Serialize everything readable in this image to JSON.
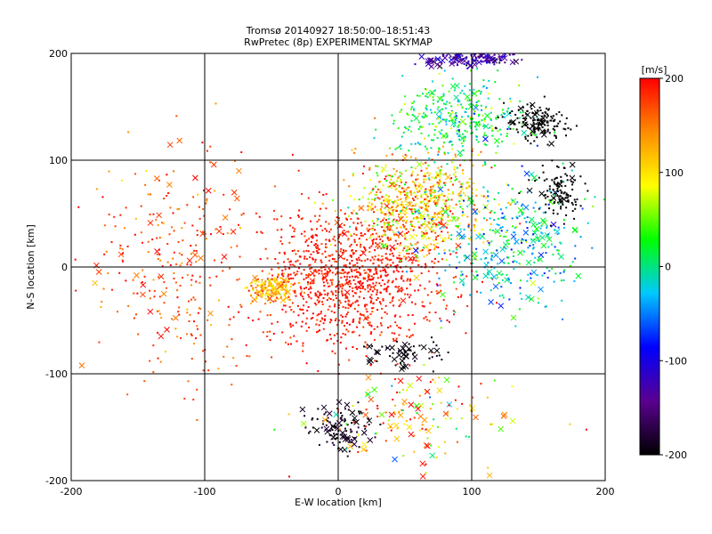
{
  "chart_data": {
    "type": "scatter",
    "title": "Tromsø 20140927 18:50:00–18:51:43",
    "subtitle": "RwPretec (8p) EXPERIMENTAL SKYMAP",
    "xlabel": "E-W location [km]",
    "ylabel": "N-S location [km]",
    "xlim": [
      -200,
      200
    ],
    "ylim": [
      -200,
      200
    ],
    "x_ticks": [
      "-200",
      "-100",
      "0",
      "100",
      "200"
    ],
    "y_ticks": [
      "-200",
      "-100",
      "0",
      "100",
      "200"
    ],
    "grid": true,
    "marker_types": [
      "dot",
      "x"
    ],
    "colorbar": {
      "label": "[m/s]",
      "min": -200,
      "max": 200,
      "ticks": [
        "-200",
        "-100",
        "0",
        "100",
        "200"
      ],
      "colormap": [
        "#000000",
        "#5a0090",
        "#0000ff",
        "#00c8ff",
        "#00ff00",
        "#ffff00",
        "#ff8c00",
        "#ff0000"
      ]
    },
    "clusters": [
      {
        "center": [
          10,
          -10
        ],
        "spread": [
          60,
          55
        ],
        "count": 1100,
        "velocity": 190,
        "velocity_spread": 20,
        "x_marker_fraction": 0.02
      },
      {
        "center": [
          -50,
          -20
        ],
        "spread": [
          15,
          10
        ],
        "count": 180,
        "velocity": 120,
        "velocity_spread": 40,
        "x_marker_fraction": 0.05
      },
      {
        "center": [
          60,
          60
        ],
        "spread": [
          40,
          40
        ],
        "count": 700,
        "velocity": 110,
        "velocity_spread": 80,
        "x_marker_fraction": 0.04
      },
      {
        "center": [
          90,
          140
        ],
        "spread": [
          40,
          30
        ],
        "count": 350,
        "velocity": 10,
        "velocity_spread": 60,
        "x_marker_fraction": 0.08
      },
      {
        "center": [
          150,
          135
        ],
        "spread": [
          20,
          15
        ],
        "count": 150,
        "velocity": -200,
        "velocity_spread": 5,
        "x_marker_fraction": 0.15
      },
      {
        "center": [
          165,
          70
        ],
        "spread": [
          15,
          20
        ],
        "count": 120,
        "velocity": -200,
        "velocity_spread": 5,
        "x_marker_fraction": 0.05
      },
      {
        "center": [
          50,
          -80
        ],
        "spread": [
          25,
          12
        ],
        "count": 60,
        "velocity": -195,
        "velocity_spread": 10,
        "x_marker_fraction": 0.45
      },
      {
        "center": [
          0,
          -150
        ],
        "spread": [
          18,
          15
        ],
        "count": 120,
        "velocity": -190,
        "velocity_spread": 20,
        "x_marker_fraction": 0.25
      },
      {
        "center": [
          100,
          195
        ],
        "spread": [
          30,
          6
        ],
        "count": 150,
        "velocity": -130,
        "velocity_spread": 40,
        "x_marker_fraction": 0.3
      },
      {
        "center": [
          130,
          20
        ],
        "spread": [
          50,
          50
        ],
        "count": 350,
        "velocity": -20,
        "velocity_spread": 70,
        "x_marker_fraction": 0.2
      },
      {
        "center": [
          -120,
          0
        ],
        "spread": [
          50,
          90
        ],
        "count": 280,
        "velocity": 170,
        "velocity_spread": 40,
        "x_marker_fraction": 0.15
      },
      {
        "center": [
          60,
          -140
        ],
        "spread": [
          60,
          40
        ],
        "count": 150,
        "velocity": 120,
        "velocity_spread": 120,
        "x_marker_fraction": 0.3
      }
    ]
  }
}
